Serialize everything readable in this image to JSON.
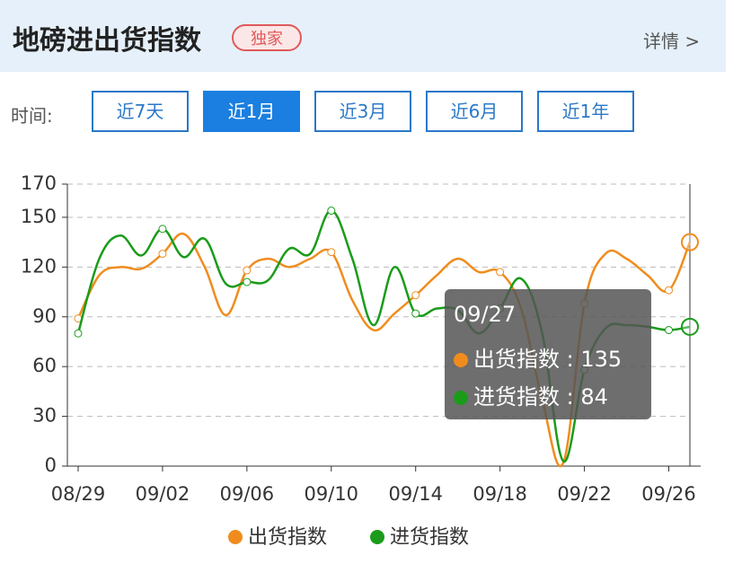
{
  "header": {
    "title": "地磅进出货指数",
    "badge": "独家",
    "detail": "详情 >"
  },
  "filter": {
    "label": "时间:",
    "options": [
      "近7天",
      "近1月",
      "近3月",
      "近6月",
      "近1年"
    ],
    "active": 1
  },
  "chart_data": {
    "type": "line",
    "categories": [
      "08/29",
      null,
      null,
      null,
      "09/02",
      null,
      null,
      null,
      "09/06",
      null,
      null,
      null,
      "09/10",
      null,
      null,
      null,
      "09/14",
      null,
      null,
      null,
      "09/18",
      null,
      null,
      null,
      "09/22",
      null,
      null,
      null,
      "09/26",
      null
    ],
    "series": [
      {
        "name": "出货指数",
        "color": "#f08c1e",
        "values": [
          89,
          115,
          120,
          119,
          128,
          140,
          120,
          91,
          118,
          125,
          120,
          125,
          129,
          100,
          82,
          92,
          103,
          115,
          125,
          117,
          117,
          95,
          40,
          2,
          98,
          128,
          125,
          115,
          106,
          135
        ]
      },
      {
        "name": "进货指数",
        "color": "#1a9c1a",
        "values": [
          80,
          125,
          139,
          127,
          143,
          126,
          137,
          110,
          111,
          112,
          131,
          128,
          154,
          125,
          85,
          120,
          92,
          95,
          94,
          80,
          95,
          113,
          80,
          3,
          58,
          83,
          85,
          84,
          82,
          84
        ]
      }
    ],
    "ylim": [
      0,
      170
    ],
    "yticks": [
      0,
      30,
      60,
      90,
      120,
      150,
      170
    ],
    "grid": true,
    "tooltip": {
      "x": "09/27",
      "index": 29
    }
  }
}
